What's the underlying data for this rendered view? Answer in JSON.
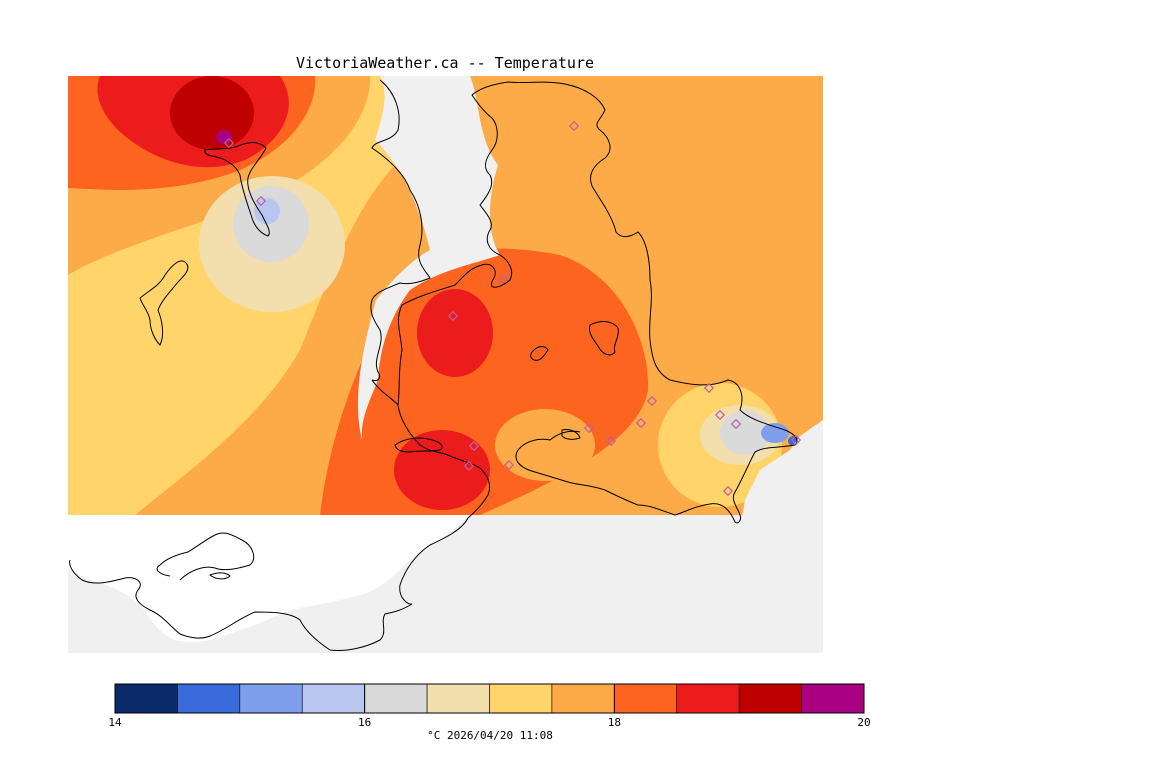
{
  "title": "VictoriaWeather.ca -- Temperature",
  "caption": "°C  2026/04/20 11:08",
  "colorbar": {
    "min": 14,
    "max": 20,
    "ticks": [
      "14",
      "16",
      "18",
      "20"
    ],
    "tick_values": [
      14,
      16,
      18,
      20
    ],
    "bins": [
      {
        "from": 14.0,
        "to": 14.5,
        "color": "#0b2a6a"
      },
      {
        "from": 14.5,
        "to": 15.0,
        "color": "#3a6bdb"
      },
      {
        "from": 15.0,
        "to": 15.5,
        "color": "#7f9eec"
      },
      {
        "from": 15.5,
        "to": 16.0,
        "color": "#b9c6f0"
      },
      {
        "from": 16.0,
        "to": 16.5,
        "color": "#dadada"
      },
      {
        "from": 16.5,
        "to": 17.0,
        "color": "#f3dfae"
      },
      {
        "from": 17.0,
        "to": 17.5,
        "color": "#ffd56b"
      },
      {
        "from": 17.5,
        "to": 18.0,
        "color": "#fdab48"
      },
      {
        "from": 18.0,
        "to": 18.5,
        "color": "#fc6420"
      },
      {
        "from": 18.5,
        "to": 19.0,
        "color": "#ec1c1c"
      },
      {
        "from": 19.0,
        "to": 19.5,
        "color": "#be0000"
      },
      {
        "from": 19.5,
        "to": 20.0,
        "color": "#aa0082"
      }
    ]
  },
  "colors": {
    "background": "#f0f0f0",
    "land_unanalyzed": "#ffffff",
    "coastline": "#000000",
    "station_marker": "#c060a0"
  }
}
